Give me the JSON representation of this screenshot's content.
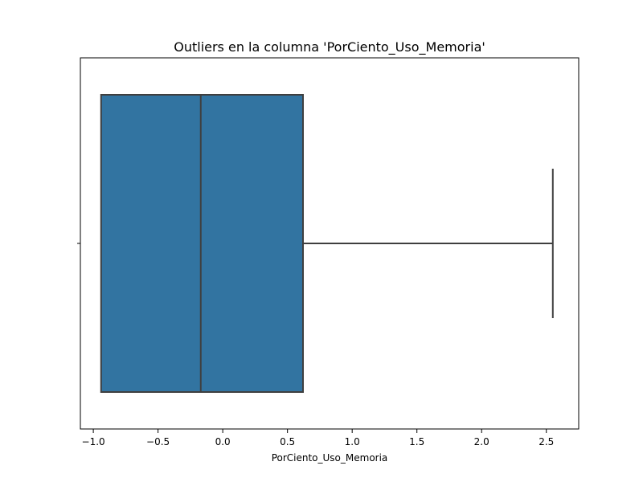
{
  "chart_data": {
    "type": "boxplot",
    "title": "Outliers en la columna 'PorCiento_Uso_Memoria'",
    "xlabel": "PorCiento_Uso_Memoria",
    "ylabel": "",
    "xlim": [
      -1.1,
      2.75
    ],
    "xticks": [
      -1.0,
      -0.5,
      0.0,
      0.5,
      1.0,
      1.5,
      2.0,
      2.5
    ],
    "xtick_labels": [
      "−1.0",
      "−0.5",
      "0.0",
      "0.5",
      "1.0",
      "1.5",
      "2.0",
      "2.5"
    ],
    "box": {
      "whisker_low": -0.94,
      "q1": -0.94,
      "median": -0.17,
      "q3": 0.62,
      "whisker_high": 2.55,
      "outliers": []
    },
    "box_color": "#3274a1",
    "line_color": "#3f3f3f",
    "grid": false,
    "legend": "none"
  }
}
